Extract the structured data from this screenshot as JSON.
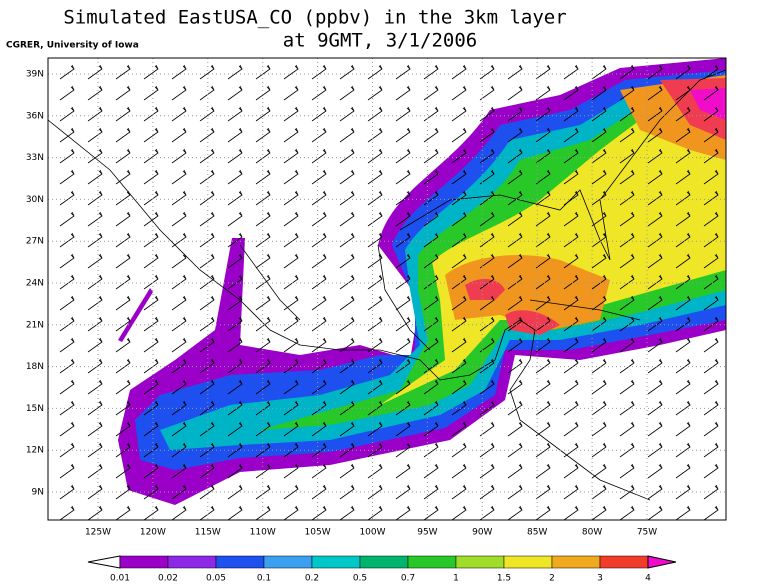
{
  "header": {
    "title": "Simulated EastUSA_CO (ppbv) in the 3km layer",
    "subtitle": "at 9GMT, 3/1/2006",
    "credit": "CGRER, University of Iowa"
  },
  "map": {
    "lat_labels": [
      "39N",
      "36N",
      "33N",
      "30N",
      "27N",
      "24N",
      "21N",
      "18N",
      "15N",
      "12N",
      "9N"
    ],
    "lon_labels": [
      "125W",
      "120W",
      "115W",
      "110W",
      "105W",
      "100W",
      "95W",
      "90W",
      "85W",
      "80W",
      "75W"
    ]
  },
  "colorbar": {
    "labels": [
      0.01,
      0.02,
      0.05,
      0.1,
      0.2,
      0.5,
      0.7,
      1,
      1.5,
      2,
      3,
      4
    ]
  }
}
